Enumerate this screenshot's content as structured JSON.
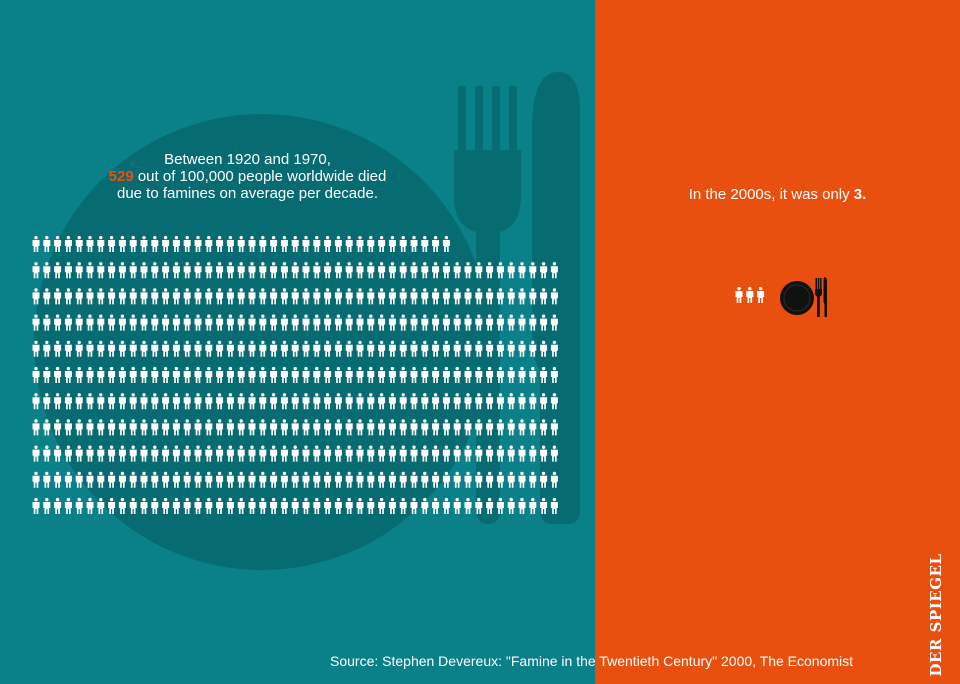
{
  "colors": {
    "left_background": "#0a8089",
    "right_background": "#e9500f",
    "highlight": "#e9500f",
    "icon_light": "#ffffff",
    "icon_dark": "#111111"
  },
  "left": {
    "headline_line1": "Between 1920 and 1970,",
    "headline_highlight": "529",
    "headline_line2_rest": " out of 100,000 people worldwide died",
    "headline_line3": "due to famines on average per decade.",
    "people_count": 529,
    "background_icon": "plate-fork-knife-icon"
  },
  "right": {
    "headline_prefix": "In the 2000s, it was only ",
    "headline_value": "3.",
    "people_count": 3,
    "icon": "plate-fork-knife-icon"
  },
  "source": "Source: Stephen Devereux: \"Famine in the Twentieth Century\" 2000, The Economist",
  "logo_text": "DER SPIEGEL"
}
